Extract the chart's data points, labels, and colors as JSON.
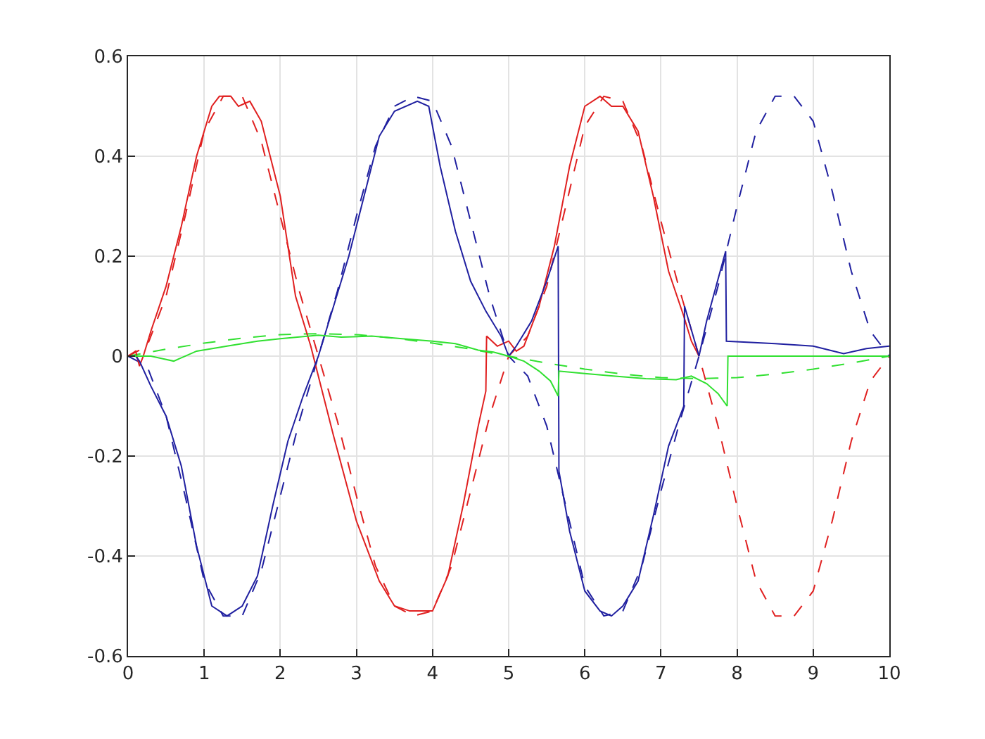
{
  "chart_data": {
    "type": "line",
    "xlim": [
      0,
      10
    ],
    "ylim": [
      -0.6,
      0.6
    ],
    "xticks": [
      0,
      1,
      2,
      3,
      4,
      5,
      6,
      7,
      8,
      9,
      10
    ],
    "yticks": [
      -0.6,
      -0.4,
      -0.2,
      0,
      0.2,
      0.4,
      0.6
    ],
    "grid": true,
    "series": [
      {
        "color": "#e02020",
        "line_style": "dashed",
        "x": [
          0,
          0.25,
          0.5,
          0.75,
          1,
          1.25,
          1.5,
          1.75,
          2,
          2.25,
          2.5,
          2.75,
          3,
          3.25,
          3.5,
          3.75,
          4,
          4.25,
          4.5,
          4.75,
          5,
          5.25,
          5.5,
          5.75,
          6,
          6.25,
          6.5,
          6.75,
          7,
          7.25,
          7.5,
          7.75,
          8,
          8.25,
          8.5,
          8.75,
          9,
          9.25,
          9.5,
          9.75,
          10
        ],
        "values": [
          0,
          0.02,
          0.12,
          0.28,
          0.45,
          0.52,
          0.52,
          0.43,
          0.28,
          0.13,
          0,
          -0.13,
          -0.28,
          -0.42,
          -0.5,
          -0.52,
          -0.51,
          -0.42,
          -0.27,
          -0.12,
          0,
          0.04,
          0.14,
          0.3,
          0.46,
          0.52,
          0.51,
          0.42,
          0.27,
          0.13,
          0,
          -0.14,
          -0.3,
          -0.45,
          -0.52,
          -0.52,
          -0.47,
          -0.33,
          -0.17,
          -0.05,
          0
        ]
      },
      {
        "color": "#2020a0",
        "line_style": "dashed",
        "x": [
          0,
          0.25,
          0.5,
          0.75,
          1,
          1.25,
          1.5,
          1.75,
          2,
          2.25,
          2.5,
          2.75,
          3,
          3.25,
          3.5,
          3.75,
          4,
          4.25,
          4.5,
          4.75,
          5,
          5.25,
          5.5,
          5.75,
          6,
          6.25,
          6.5,
          6.75,
          7,
          7.25,
          7.5,
          7.75,
          8,
          8.25,
          8.5,
          8.75,
          9,
          9.25,
          9.5,
          9.75,
          10
        ],
        "values": [
          0,
          -0.02,
          -0.12,
          -0.28,
          -0.45,
          -0.52,
          -0.52,
          -0.43,
          -0.28,
          -0.13,
          0,
          0.13,
          0.28,
          0.42,
          0.5,
          0.52,
          0.51,
          0.42,
          0.27,
          0.12,
          0,
          -0.04,
          -0.14,
          -0.3,
          -0.46,
          -0.52,
          -0.51,
          -0.42,
          -0.27,
          -0.13,
          0,
          0.14,
          0.3,
          0.45,
          0.52,
          0.52,
          0.47,
          0.33,
          0.17,
          0.05,
          0
        ]
      },
      {
        "color": "#30e030",
        "line_style": "dashed",
        "x": [
          0,
          0.5,
          1,
          1.5,
          2,
          2.5,
          3,
          3.5,
          4,
          4.5,
          5,
          5.5,
          6,
          6.5,
          7,
          7.5,
          8,
          8.5,
          9,
          9.5,
          10
        ],
        "values": [
          0,
          0.014,
          0.026,
          0.036,
          0.043,
          0.045,
          0.043,
          0.036,
          0.026,
          0.014,
          0,
          -0.014,
          -0.026,
          -0.036,
          -0.043,
          -0.045,
          -0.043,
          -0.036,
          -0.026,
          -0.014,
          0
        ]
      },
      {
        "color": "#e02020",
        "line_style": "solid",
        "x": [
          0,
          0.1,
          0.15,
          0.2,
          0.3,
          0.5,
          0.7,
          0.9,
          1.1,
          1.2,
          1.35,
          1.45,
          1.6,
          1.75,
          2,
          2.2,
          2.4,
          2.5,
          2.7,
          3,
          3.3,
          3.5,
          3.7,
          4,
          4.2,
          4.4,
          4.6,
          4.7,
          4.71,
          4.85,
          5,
          5.1,
          5.2,
          5.4,
          5.6,
          5.8,
          6,
          6.2,
          6.35,
          6.5,
          6.7,
          6.9,
          7.1,
          7.3,
          7.4,
          7.5
        ],
        "values": [
          0,
          0.01,
          -0.02,
          0,
          0.05,
          0.14,
          0.26,
          0.4,
          0.5,
          0.52,
          0.52,
          0.5,
          0.51,
          0.47,
          0.32,
          0.12,
          0.02,
          -0.04,
          -0.16,
          -0.33,
          -0.45,
          -0.5,
          -0.51,
          -0.51,
          -0.44,
          -0.3,
          -0.14,
          -0.07,
          0.04,
          0.02,
          0.03,
          0.01,
          0.02,
          0.1,
          0.22,
          0.38,
          0.5,
          0.52,
          0.5,
          0.5,
          0.45,
          0.32,
          0.17,
          0.08,
          0.03,
          0
        ]
      },
      {
        "color": "#2020a0",
        "line_style": "solid",
        "x": [
          0,
          0.1,
          0.15,
          0.3,
          0.5,
          0.7,
          0.9,
          1.1,
          1.3,
          1.5,
          1.7,
          1.9,
          2.1,
          2.3,
          2.5,
          2.7,
          2.9,
          3.1,
          3.3,
          3.5,
          3.8,
          3.95,
          4.1,
          4.3,
          4.5,
          4.7,
          4.9,
          5,
          5.1,
          5.3,
          5.5,
          5.65,
          5.66,
          5.8,
          6,
          6.2,
          6.35,
          6.5,
          6.7,
          6.9,
          7.1,
          7.3,
          7.31,
          7.5,
          7.6,
          7.85,
          7.86,
          8.5,
          9,
          9.4,
          9.7,
          10
        ],
        "values": [
          0,
          0,
          -0.01,
          -0.06,
          -0.12,
          -0.22,
          -0.38,
          -0.5,
          -0.52,
          -0.5,
          -0.44,
          -0.3,
          -0.17,
          -0.08,
          0,
          0.1,
          0.2,
          0.32,
          0.44,
          0.49,
          0.51,
          0.5,
          0.38,
          0.25,
          0.15,
          0.09,
          0.04,
          0,
          0.02,
          0.07,
          0.15,
          0.22,
          -0.23,
          -0.35,
          -0.47,
          -0.51,
          -0.52,
          -0.5,
          -0.45,
          -0.32,
          -0.18,
          -0.1,
          0.1,
          0,
          0.07,
          0.21,
          0.03,
          0.025,
          0.02,
          0.005,
          0.015,
          0.02
        ]
      },
      {
        "color": "#30e030",
        "line_style": "solid",
        "x": [
          0,
          0.3,
          0.6,
          0.9,
          1.3,
          1.7,
          2,
          2.5,
          2.8,
          3.2,
          3.6,
          4,
          4.3,
          4.6,
          4.8,
          5,
          5.2,
          5.4,
          5.55,
          5.65,
          5.66,
          6,
          6.4,
          6.8,
          7.2,
          7.4,
          7.6,
          7.75,
          7.87,
          7.88,
          10
        ],
        "values": [
          0,
          0,
          -0.01,
          0.01,
          0.02,
          0.03,
          0.035,
          0.042,
          0.038,
          0.04,
          0.035,
          0.03,
          0.025,
          0.012,
          0.008,
          0,
          -0.01,
          -0.03,
          -0.05,
          -0.08,
          -0.03,
          -0.035,
          -0.04,
          -0.045,
          -0.047,
          -0.04,
          -0.055,
          -0.075,
          -0.1,
          0,
          0
        ]
      }
    ]
  }
}
